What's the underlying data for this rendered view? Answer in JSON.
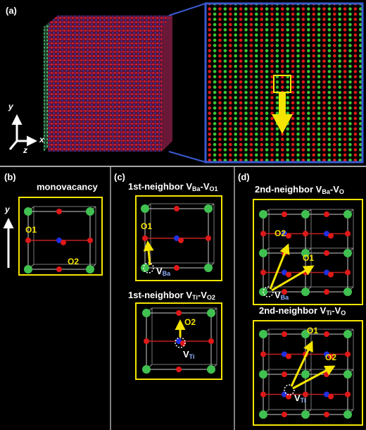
{
  "panel_a": {
    "label": "(a)",
    "axes": {
      "y": "y",
      "x": "x",
      "z": "z"
    }
  },
  "panel_b": {
    "label": "(b)",
    "title": "monovacancy",
    "axis": "y",
    "labels": [
      "O1",
      "O2"
    ]
  },
  "panel_c": {
    "label": "(c)",
    "top": {
      "title": [
        "1st-neighbor V",
        "Ba",
        "-V",
        "O1"
      ],
      "labels": [
        "O1"
      ],
      "vacancy": [
        "V",
        "Ba"
      ]
    },
    "bottom": {
      "title": [
        "1st-neighbor V",
        "Ti",
        "-V",
        "O2"
      ],
      "labels": [
        "O2"
      ],
      "vacancy": [
        "V",
        "Ti"
      ]
    }
  },
  "panel_d": {
    "label": "(d)",
    "top": {
      "title": [
        "2nd-neighbor V",
        "Ba",
        "-V",
        "O"
      ],
      "labels": [
        "O2",
        "O1"
      ],
      "vacancy": [
        "V",
        "Ba"
      ]
    },
    "bottom": {
      "title": [
        "2nd-neighbor V",
        "Ti",
        "-V",
        "O"
      ],
      "labels": [
        "O1",
        "O2"
      ],
      "vacancy": [
        "V",
        "Ti"
      ]
    }
  }
}
